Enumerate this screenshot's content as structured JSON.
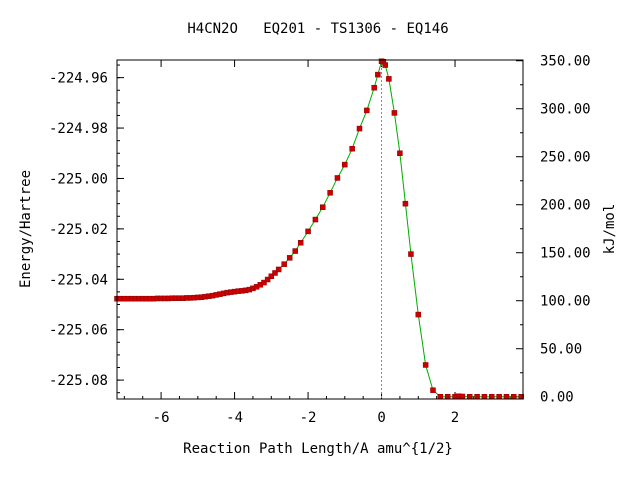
{
  "chart_data": {
    "type": "line",
    "title": "H4CN2O   EQ201 - TS1306 - EQ146",
    "xlabel": "Reaction Path Length/A amu^{1/2}",
    "ylabel_left": "Energy/Hartree",
    "ylabel_right": "kJ/mol",
    "xlim": [
      -7.2,
      3.85
    ],
    "ylim": [
      -225.0875,
      -224.953
    ],
    "xticks": [
      -6,
      -4,
      -2,
      0,
      2
    ],
    "xtick_labels": [
      "-6",
      "-4",
      "-2",
      "0",
      "2"
    ],
    "yticks_left": [
      -224.96,
      -224.98,
      -225.0,
      -225.02,
      -225.04,
      -225.06,
      -225.08
    ],
    "yticks_left_labels": [
      "-224.96",
      "-224.98",
      "-225.00",
      "-225.02",
      "-225.04",
      "-225.06",
      "-225.08"
    ],
    "right_axis_zero_hartree": -225.0866,
    "hartree_to_kjmol": 2625.5,
    "yticks_right": [
      0,
      50,
      100,
      150,
      200,
      250,
      300,
      350
    ],
    "yticks_right_labels": [
      "0.00",
      "50.00",
      "100.00",
      "150.00",
      "200.00",
      "250.00",
      "300.00",
      "350.00"
    ],
    "ts_x": 0.0,
    "line_color": "#00aa00",
    "marker_color": "#cc0000",
    "series": [
      {
        "x": [
          -7.2,
          -7.1,
          -7.0,
          -6.9,
          -6.8,
          -6.7,
          -6.6,
          -6.5,
          -6.4,
          -6.3,
          -6.2,
          -6.1,
          -6.0,
          -5.9,
          -5.8,
          -5.7,
          -5.6,
          -5.5,
          -5.4,
          -5.3,
          -5.2,
          -5.1,
          -5.0,
          -4.9,
          -4.8,
          -4.7,
          -4.6,
          -4.5,
          -4.4,
          -4.3,
          -4.2,
          -4.1,
          -4.0,
          -3.9,
          -3.8,
          -3.7,
          -3.6,
          -3.5,
          -3.4,
          -3.3,
          -3.2,
          -3.1,
          -3.0,
          -2.9,
          -2.8,
          -2.65,
          -2.5,
          -2.35,
          -2.2,
          -2.0,
          -1.8,
          -1.6,
          -1.4,
          -1.2,
          -1.0,
          -0.8,
          -0.6,
          -0.4,
          -0.2,
          -0.1,
          0.0,
          0.05,
          0.1,
          0.2,
          0.35,
          0.5,
          0.65,
          0.8,
          1.0,
          1.2,
          1.4,
          1.6,
          1.8,
          2.0,
          2.1,
          2.2,
          2.4,
          2.6,
          2.8,
          3.0,
          3.2,
          3.4,
          3.6,
          3.8
        ],
        "y": [
          -225.0477,
          -225.0477,
          -225.0477,
          -225.0477,
          -225.0477,
          -225.0477,
          -225.0477,
          -225.0477,
          -225.0477,
          -225.0477,
          -225.0477,
          -225.0476,
          -225.0476,
          -225.0476,
          -225.0476,
          -225.0475,
          -225.0475,
          -225.0475,
          -225.0475,
          -225.0474,
          -225.0474,
          -225.0473,
          -225.0472,
          -225.0471,
          -225.0469,
          -225.0467,
          -225.0465,
          -225.0462,
          -225.0459,
          -225.0456,
          -225.0453,
          -225.0451,
          -225.0449,
          -225.0447,
          -225.0446,
          -225.0444,
          -225.0441,
          -225.0436,
          -225.043,
          -225.0422,
          -225.0413,
          -225.0401,
          -225.0388,
          -225.0375,
          -225.0361,
          -225.034,
          -225.0315,
          -225.0288,
          -225.0255,
          -225.021,
          -225.0163,
          -225.0114,
          -225.0057,
          -224.9998,
          -224.9945,
          -224.9882,
          -224.9802,
          -224.973,
          -224.964,
          -224.9588,
          -224.9535,
          -224.9537,
          -224.955,
          -224.9605,
          -224.974,
          -224.99,
          -225.01,
          -225.03,
          -225.054,
          -225.074,
          -225.084,
          -225.0866,
          -225.0866,
          -225.0866,
          -225.0864,
          -225.0865,
          -225.0866,
          -225.0866,
          -225.0866,
          -225.0866,
          -225.0866,
          -225.0866,
          -225.0866,
          -225.0866
        ]
      }
    ]
  }
}
